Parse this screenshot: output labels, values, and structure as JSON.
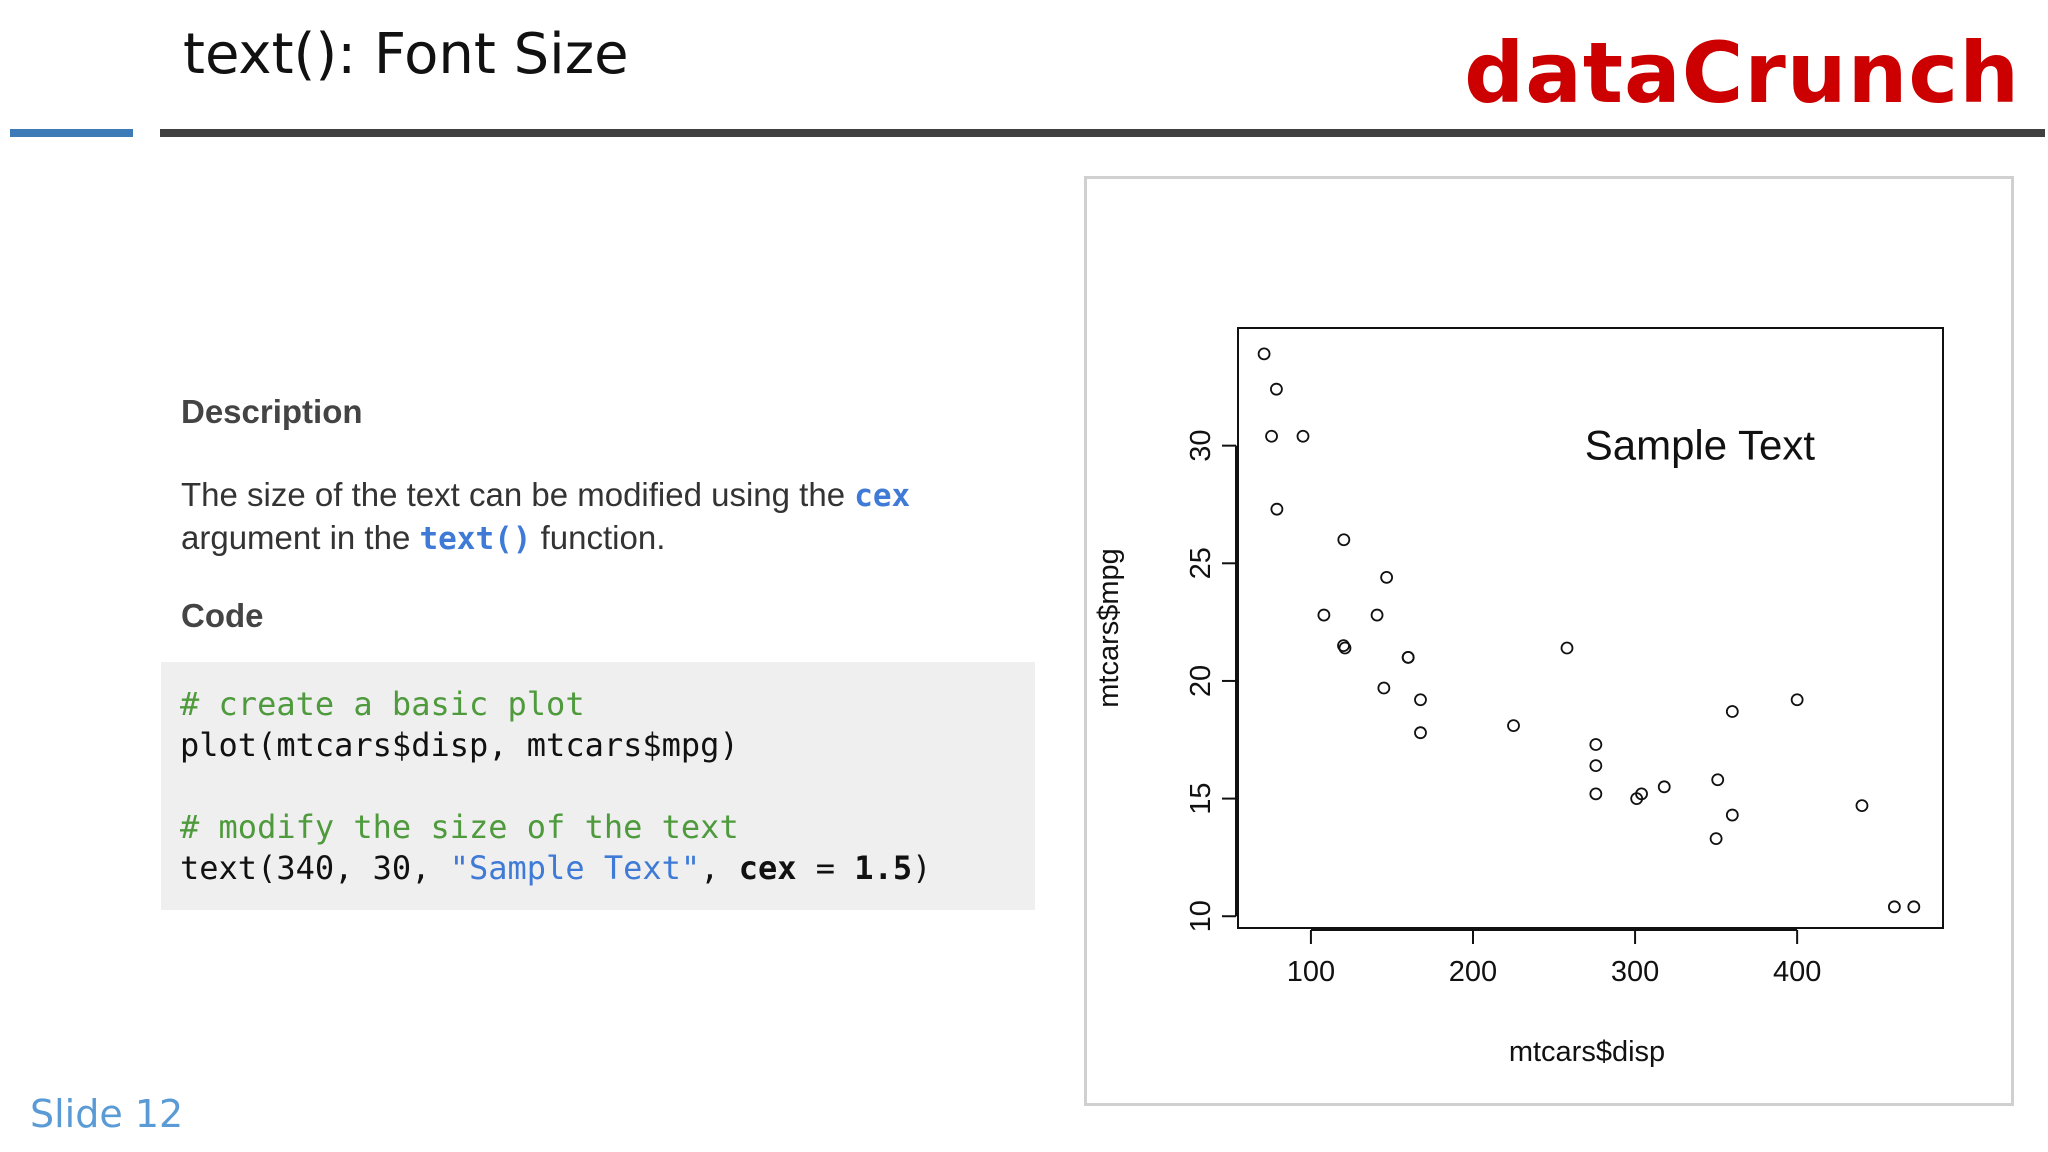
{
  "slide": {
    "title": "text(): Font Size",
    "brand": "dataCrunch",
    "slide_number": "Slide 12",
    "colors": {
      "brand": "#cc0000",
      "accent_rule": "#3c7ab8",
      "code_highlight": "#3e7ad6",
      "code_comment": "#4e9a3c"
    }
  },
  "description": {
    "heading": "Description",
    "text_before": "The size of the text can be modified using the ",
    "code1": "cex",
    "text_middle": " argument in the ",
    "code2": "text()",
    "text_after": " function."
  },
  "code": {
    "heading": "Code",
    "comment1": "# create a basic plot",
    "line1": "plot(mtcars$disp, mtcars$mpg)",
    "comment2": "# modify the size of the text",
    "line2_prefix": "text(340, 30, ",
    "line2_string": "\"Sample Text\"",
    "line2_sep": ", ",
    "line2_arg": "cex",
    "line2_assign": " = ",
    "line2_value": "1.5",
    "line2_suffix": ")"
  },
  "chart_data": {
    "type": "scatter",
    "xlabel": "mtcars$disp",
    "ylabel": "mtcars$mpg",
    "xlim": [
      55,
      490
    ],
    "ylim": [
      9.5,
      35
    ],
    "xticks": [
      100,
      200,
      300,
      400
    ],
    "yticks": [
      10,
      15,
      20,
      25,
      30
    ],
    "grid": false,
    "points": [
      {
        "x": 160,
        "y": 21.0
      },
      {
        "x": 160,
        "y": 21.0
      },
      {
        "x": 108,
        "y": 22.8
      },
      {
        "x": 258,
        "y": 21.4
      },
      {
        "x": 360,
        "y": 18.7
      },
      {
        "x": 225,
        "y": 18.1
      },
      {
        "x": 360,
        "y": 14.3
      },
      {
        "x": 146.7,
        "y": 24.4
      },
      {
        "x": 140.8,
        "y": 22.8
      },
      {
        "x": 167.6,
        "y": 19.2
      },
      {
        "x": 167.6,
        "y": 17.8
      },
      {
        "x": 275.8,
        "y": 16.4
      },
      {
        "x": 275.8,
        "y": 17.3
      },
      {
        "x": 275.8,
        "y": 15.2
      },
      {
        "x": 472,
        "y": 10.4
      },
      {
        "x": 460,
        "y": 10.4
      },
      {
        "x": 440,
        "y": 14.7
      },
      {
        "x": 78.7,
        "y": 32.4
      },
      {
        "x": 75.7,
        "y": 30.4
      },
      {
        "x": 71.1,
        "y": 33.9
      },
      {
        "x": 120.1,
        "y": 21.5
      },
      {
        "x": 318,
        "y": 15.5
      },
      {
        "x": 304,
        "y": 15.2
      },
      {
        "x": 350,
        "y": 13.3
      },
      {
        "x": 400,
        "y": 19.2
      },
      {
        "x": 79,
        "y": 27.3
      },
      {
        "x": 120.3,
        "y": 26.0
      },
      {
        "x": 95.1,
        "y": 30.4
      },
      {
        "x": 351,
        "y": 15.8
      },
      {
        "x": 145,
        "y": 19.7
      },
      {
        "x": 301,
        "y": 15.0
      },
      {
        "x": 121,
        "y": 21.4
      }
    ],
    "annotation": {
      "text": "Sample Text",
      "x": 340,
      "y": 30
    }
  }
}
